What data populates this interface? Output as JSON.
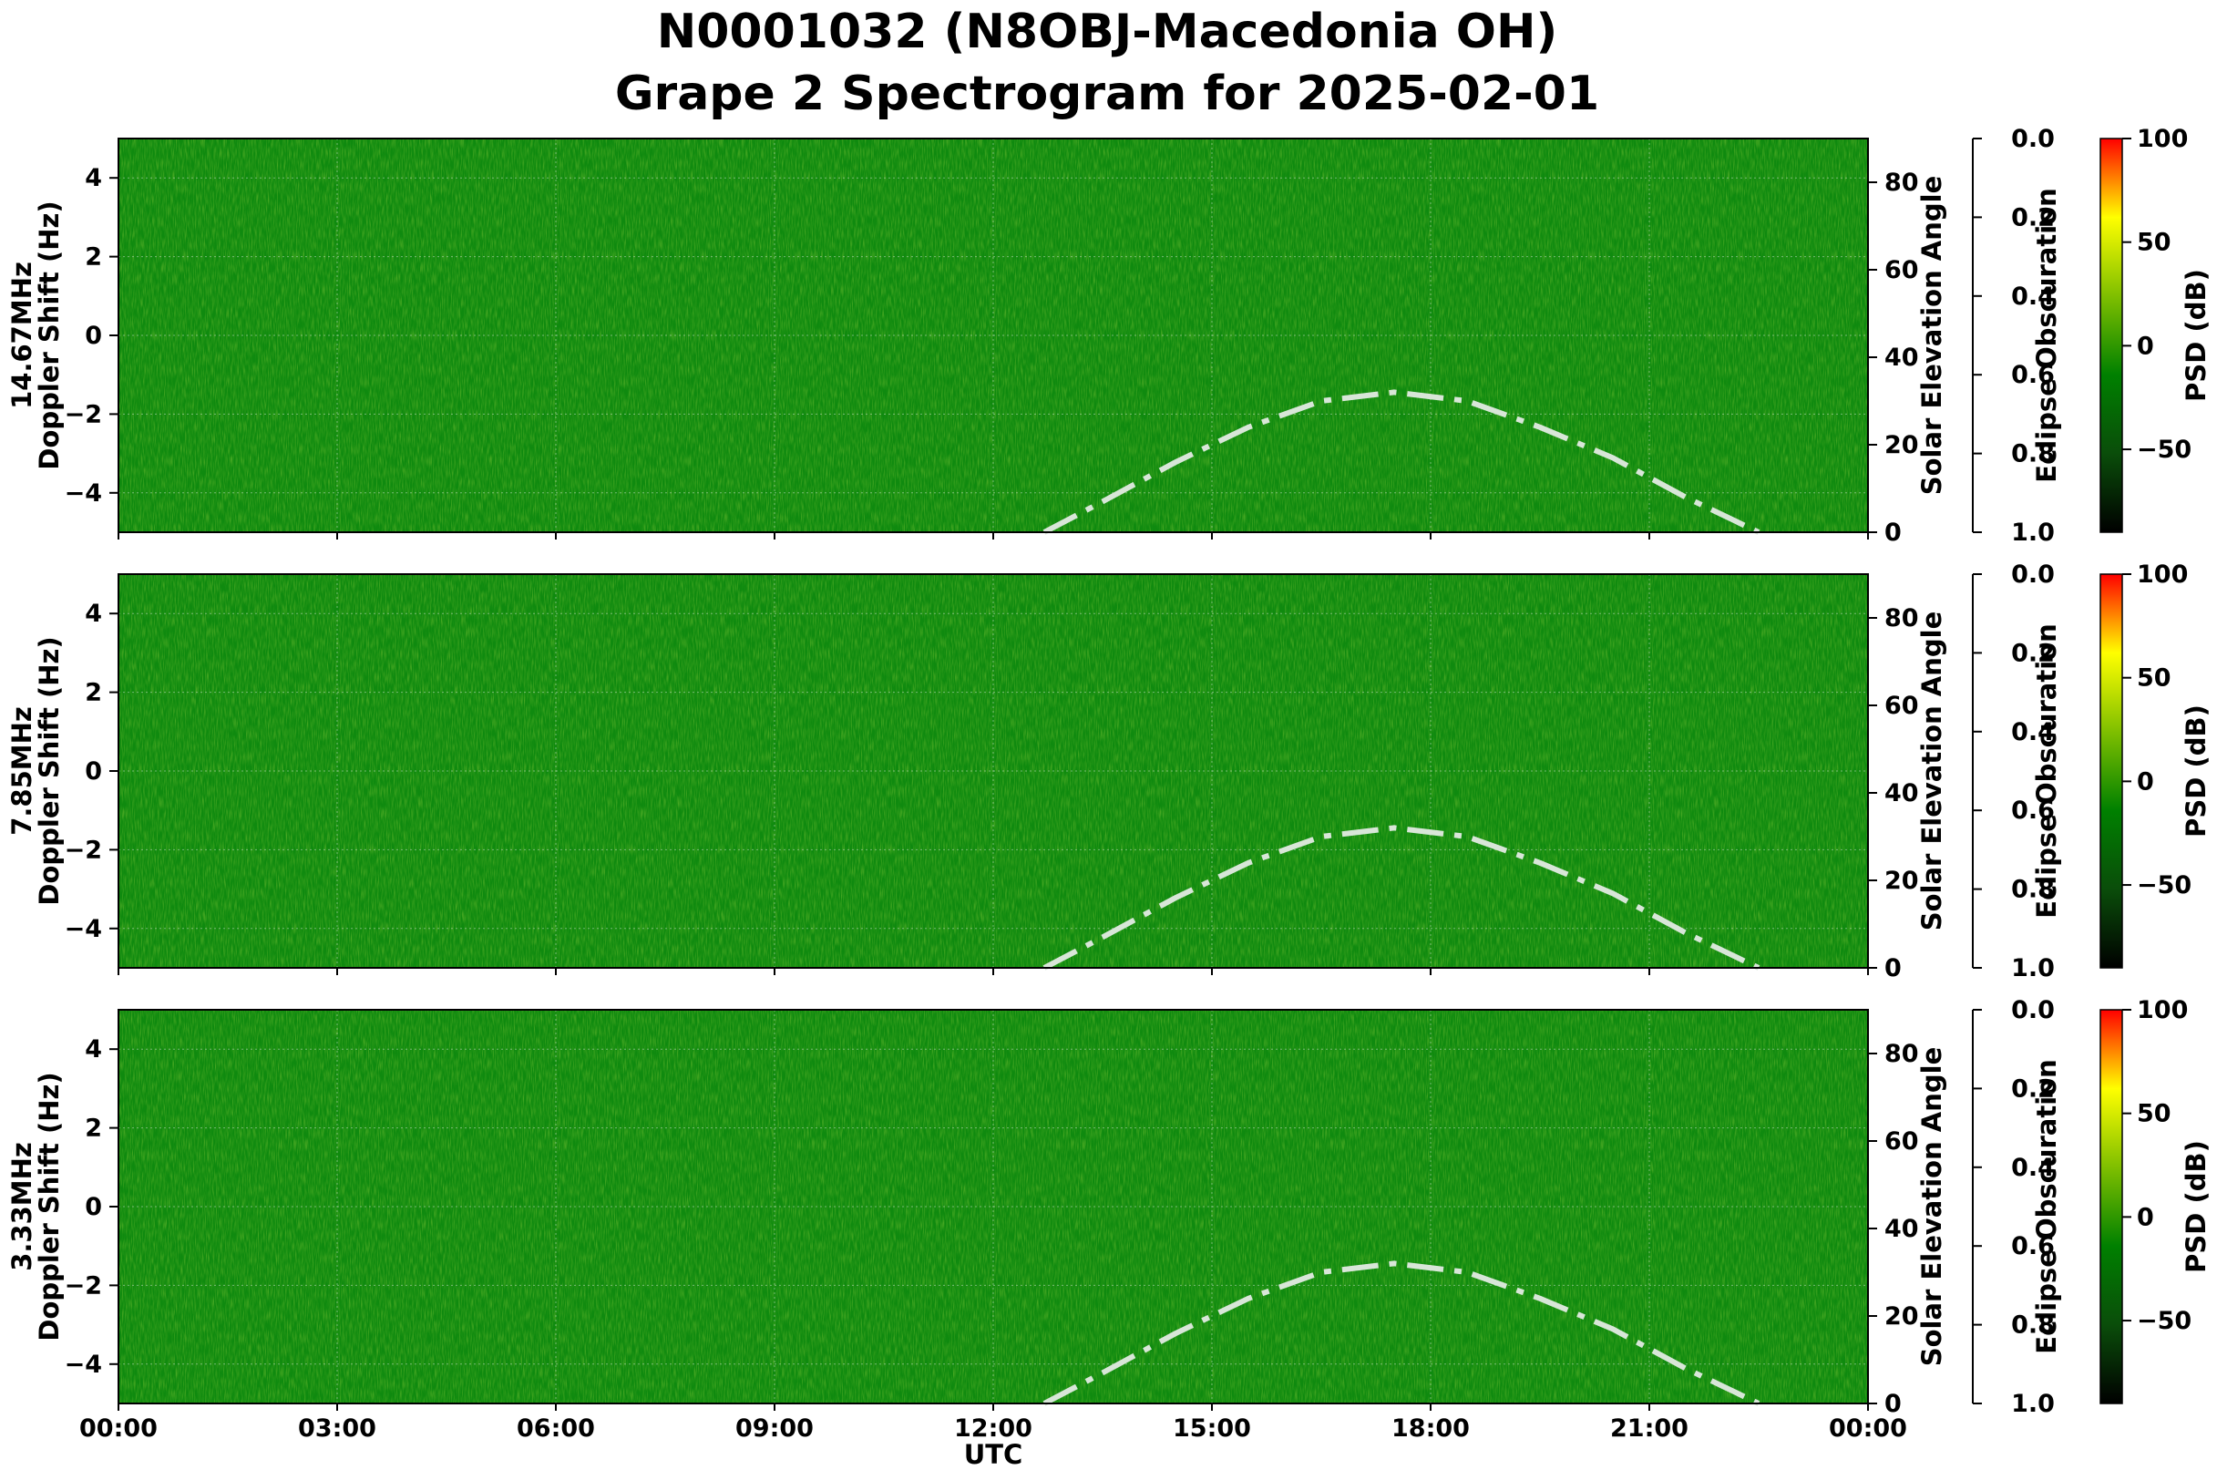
{
  "chart_data": {
    "type": "heatmap",
    "title": "N0001032 (N8OBJ-Macedonia OH)",
    "subtitle": "Grape 2 Spectrogram for 2025-02-01",
    "xlabel": "UTC",
    "x_ticks": [
      "00:00",
      "03:00",
      "06:00",
      "09:00",
      "12:00",
      "15:00",
      "18:00",
      "21:00",
      "00:00"
    ],
    "x_range_hours": [
      0,
      24
    ],
    "y_range_hz": [
      -5,
      5
    ],
    "y_ticks": [
      "4",
      "2",
      "0",
      "−2",
      "−4"
    ],
    "right_axis": {
      "label": "Solar Elevation Angle",
      "ticks": [
        "0",
        "20",
        "40",
        "60",
        "80"
      ],
      "range": [
        0,
        90
      ]
    },
    "eclipse_axis": {
      "label": "Eclipse Obscuration",
      "ticks": [
        "0.0",
        "0.2",
        "0.4",
        "0.6",
        "0.8",
        "1.0"
      ],
      "range": [
        0,
        1
      ]
    },
    "colorbar": {
      "label": "PSD (dB)",
      "ticks": [
        "100",
        "50",
        "0",
        "−50"
      ],
      "range": [
        -90,
        100
      ],
      "colors": [
        "#000000",
        "#0a4d0a",
        "#008000",
        "#7fbf00",
        "#ffff00",
        "#ff0000"
      ]
    },
    "grid": true,
    "panels": [
      {
        "ylabel_freq": "14.67MHz",
        "ylabel": "Doppler Shift (Hz)"
      },
      {
        "ylabel_freq": "7.85MHz",
        "ylabel": "Doppler Shift (Hz)"
      },
      {
        "ylabel_freq": "3.33MHz",
        "ylabel": "Doppler Shift (Hz)"
      }
    ],
    "solar_elevation": {
      "style": "dash-dot",
      "color": "#d8e6d8",
      "x_hours": [
        12.7,
        13.5,
        14.5,
        15.5,
        16.5,
        17.5,
        18.5,
        19.5,
        20.5,
        21.5,
        22.5
      ],
      "y_deg": [
        0,
        7,
        16,
        24,
        30,
        32,
        30,
        24,
        17,
        8,
        0
      ]
    }
  }
}
